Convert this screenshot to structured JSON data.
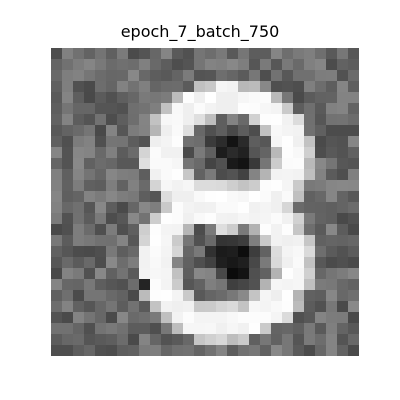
{
  "figure": {
    "title": "epoch_7_batch_750"
  },
  "image": {
    "alt": "generated grayscale digit 8",
    "colormap": "gray",
    "grid": "28x28"
  }
}
